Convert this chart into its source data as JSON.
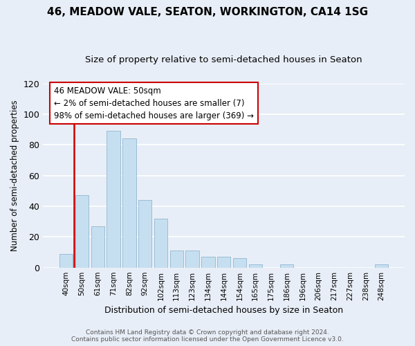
{
  "title": "46, MEADOW VALE, SEATON, WORKINGTON, CA14 1SG",
  "subtitle": "Size of property relative to semi-detached houses in Seaton",
  "xlabel": "Distribution of semi-detached houses by size in Seaton",
  "ylabel": "Number of semi-detached properties",
  "bar_labels": [
    "40sqm",
    "50sqm",
    "61sqm",
    "71sqm",
    "82sqm",
    "92sqm",
    "102sqm",
    "113sqm",
    "123sqm",
    "134sqm",
    "144sqm",
    "154sqm",
    "165sqm",
    "175sqm",
    "186sqm",
    "196sqm",
    "206sqm",
    "217sqm",
    "227sqm",
    "238sqm",
    "248sqm"
  ],
  "bar_values": [
    9,
    47,
    27,
    89,
    84,
    44,
    32,
    11,
    11,
    7,
    7,
    6,
    2,
    0,
    2,
    0,
    0,
    0,
    0,
    0,
    2
  ],
  "bar_color": "#c6dff0",
  "bar_edge_color": "#9bbdd4",
  "highlight_line_color": "#cc0000",
  "annotation_title": "46 MEADOW VALE: 50sqm",
  "annotation_line1": "← 2% of semi-detached houses are smaller (7)",
  "annotation_line2": "98% of semi-detached houses are larger (369) →",
  "annotation_box_color": "#ffffff",
  "annotation_box_edge": "#cc0000",
  "ylim": [
    0,
    120
  ],
  "yticks": [
    0,
    20,
    40,
    60,
    80,
    100,
    120
  ],
  "footer_line1": "Contains HM Land Registry data © Crown copyright and database right 2024.",
  "footer_line2": "Contains public sector information licensed under the Open Government Licence v3.0.",
  "bg_color": "#e8eef7",
  "grid_color": "#ffffff",
  "title_fontsize": 11,
  "subtitle_fontsize": 9.5
}
